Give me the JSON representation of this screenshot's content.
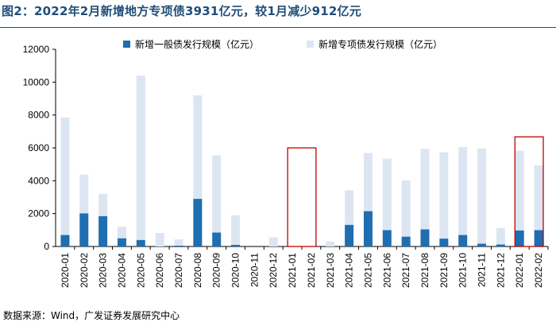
{
  "figure": {
    "title": "图2：2022年2月新增地方专项债3931亿元，较1月减少912亿元",
    "source": "数据来源：Wind，广发证券发展研究中心"
  },
  "colors": {
    "general": "#1f6eb1",
    "special": "#dce6f2",
    "highlight": "#c00000",
    "title": "#1f4e79"
  },
  "chart_data": {
    "type": "bar",
    "stacked": true,
    "categories": [
      "2020-01",
      "2020-02",
      "2020-03",
      "2020-04",
      "2020-05",
      "2020-06",
      "2020-07",
      "2020-08",
      "2020-09",
      "2020-10",
      "2020-11",
      "2020-12",
      "2021-01",
      "2021-02",
      "2021-03",
      "2021-04",
      "2021-05",
      "2021-06",
      "2021-07",
      "2021-08",
      "2021-09",
      "2021-10",
      "2021-11",
      "2021-12",
      "2022-01",
      "2022-02"
    ],
    "series": [
      {
        "name": "新增一般债发行规模（亿元）",
        "color": "#1f6eb1",
        "values": [
          700,
          2020,
          1850,
          500,
          400,
          0,
          50,
          2900,
          850,
          100,
          0,
          0,
          0,
          0,
          0,
          1320,
          2150,
          1000,
          600,
          1040,
          480,
          700,
          170,
          120,
          980,
          1000
        ]
      },
      {
        "name": "新增专项债发行规模（亿元）",
        "color": "#dce6f2",
        "values": [
          7150,
          2350,
          1350,
          700,
          10000,
          820,
          380,
          6300,
          4700,
          1800,
          0,
          560,
          0,
          0,
          300,
          2100,
          3540,
          4340,
          3420,
          4900,
          5250,
          5360,
          5790,
          1000,
          4843,
          3931
        ]
      }
    ],
    "ylim": [
      0,
      12000
    ],
    "yticks": [
      0,
      2000,
      4000,
      6000,
      8000,
      10000,
      12000
    ],
    "legend_position": "top",
    "grid": false,
    "highlight_groups": [
      [
        "2021-01",
        "2021-02"
      ],
      [
        "2022-01",
        "2022-02"
      ]
    ]
  }
}
